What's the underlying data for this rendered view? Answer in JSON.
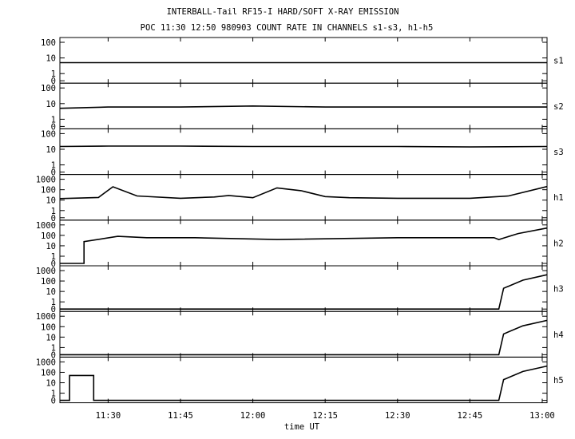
{
  "chart_data": {
    "type": "line",
    "title": "INTERBALL-Tail RF15-I HARD/SOFT X-RAY EMISSION",
    "subtitle": "POC 11:30 12:50 980903  COUNT RATE IN CHANNELS s1-s3, h1-h5",
    "xlabel": "time UT",
    "x_ticks": [
      "11:30",
      "11:45",
      "12:00",
      "12:15",
      "12:30",
      "12:45",
      "13:00"
    ],
    "x_range": [
      "11:20",
      "13:01"
    ],
    "yscale": "log",
    "panels": [
      {
        "name": "s1",
        "ytick_labels": [
          "0",
          "1",
          "10",
          "100"
        ],
        "ylim": [
          0,
          100
        ],
        "series": [
          {
            "x": [
              "11:20",
              "11:30",
              "11:45",
              "12:00",
              "12:15",
              "12:30",
              "12:45",
              "13:01"
            ],
            "y": [
              5,
              5,
              5,
              5,
              5,
              5,
              5,
              5
            ]
          }
        ]
      },
      {
        "name": "s2",
        "ytick_labels": [
          "0",
          "1",
          "10",
          "100"
        ],
        "ylim": [
          0,
          100
        ],
        "series": [
          {
            "x": [
              "11:20",
              "11:30",
              "11:45",
              "12:00",
              "12:15",
              "12:30",
              "12:45",
              "13:01"
            ],
            "y": [
              5,
              6,
              6,
              7,
              6,
              6,
              6,
              6
            ]
          }
        ]
      },
      {
        "name": "s3",
        "ytick_labels": [
          "0",
          "1",
          "10",
          "100"
        ],
        "ylim": [
          0,
          100
        ],
        "series": [
          {
            "x": [
              "11:20",
              "11:30",
              "11:45",
              "12:00",
              "12:15",
              "12:30",
              "12:45",
              "13:01"
            ],
            "y": [
              15,
              16,
              16,
              15,
              15,
              15,
              14,
              15
            ]
          }
        ]
      },
      {
        "name": "h1",
        "ytick_labels": [
          "0",
          "1",
          "10",
          "100",
          "1000"
        ],
        "ylim": [
          0,
          1000
        ],
        "series": [
          {
            "x": [
              "11:20",
              "11:28",
              "11:31",
              "11:36",
              "11:45",
              "11:52",
              "11:55",
              "12:00",
              "12:05",
              "12:10",
              "12:15",
              "12:20",
              "12:30",
              "12:45",
              "12:53",
              "13:01"
            ],
            "y": [
              14,
              18,
              190,
              25,
              15,
              20,
              28,
              17,
              150,
              80,
              22,
              17,
              15,
              15,
              25,
              200
            ]
          }
        ]
      },
      {
        "name": "h2",
        "ytick_labels": [
          "0",
          "1",
          "10",
          "100",
          "1000"
        ],
        "ylim": [
          0,
          1000
        ],
        "series": [
          {
            "x": [
              "11:20",
              "11:25",
              "11:25",
              "11:32",
              "11:38",
              "11:48",
              "12:05",
              "12:30",
              "12:50",
              "12:51",
              "12:55",
              "13:01"
            ],
            "y": [
              0,
              0,
              25,
              80,
              60,
              60,
              40,
              60,
              60,
              40,
              150,
              500
            ]
          }
        ]
      },
      {
        "name": "h3",
        "ytick_labels": [
          "0",
          "1",
          "10",
          "100",
          "1000"
        ],
        "ylim": [
          0,
          1000
        ],
        "series": [
          {
            "x": [
              "11:20",
              "12:51",
              "12:52",
              "12:56",
              "13:01"
            ],
            "y": [
              0,
              0,
              20,
              120,
              400
            ]
          }
        ]
      },
      {
        "name": "h4",
        "ytick_labels": [
          "0",
          "1",
          "10",
          "100",
          "1000"
        ],
        "ylim": [
          0,
          1000
        ],
        "series": [
          {
            "x": [
              "11:20",
              "12:51",
              "12:52",
              "12:56",
              "13:01"
            ],
            "y": [
              0,
              0,
              20,
              120,
              400
            ]
          }
        ]
      },
      {
        "name": "h5",
        "ytick_labels": [
          "0",
          "1",
          "10",
          "100",
          "1000"
        ],
        "ylim": [
          0,
          1000
        ],
        "series": [
          {
            "x": [
              "11:20",
              "11:22",
              "11:22",
              "11:27",
              "11:27",
              "12:51",
              "12:52",
              "12:56",
              "13:01"
            ],
            "y": [
              0,
              0,
              50,
              50,
              0,
              0,
              20,
              120,
              400
            ]
          }
        ]
      }
    ]
  }
}
